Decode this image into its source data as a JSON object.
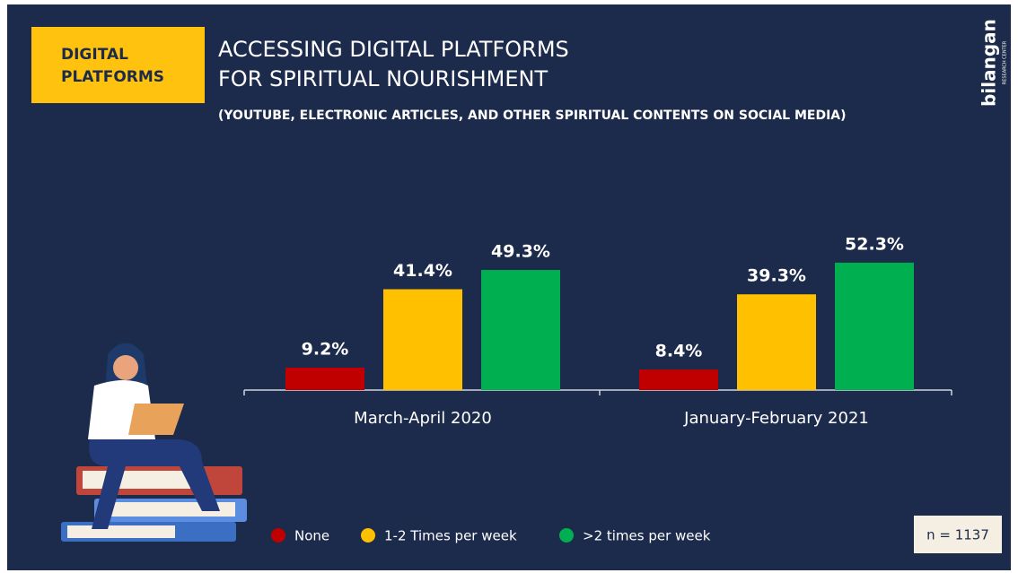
{
  "chart_data": {
    "type": "bar",
    "badge": [
      "DIGITAL",
      "PLATFORMS"
    ],
    "title": [
      "ACCESSING DIGITAL PLATFORMS",
      "FOR SPIRITUAL NOURISHMENT"
    ],
    "subtitle": "(YOUTUBE, ELECTRONIC ARTICLES, AND OTHER SPIRITUAL CONTENTS ON SOCIAL MEDIA)",
    "logo": "bilangan",
    "logo_subtitle": "RESEARCH CENTER",
    "categories": [
      "March-April 2020",
      "January-February 2021"
    ],
    "series": [
      {
        "name": "None",
        "color": "#c00000",
        "values": [
          9.2,
          8.4
        ],
        "value_labels": [
          "9.2%",
          "8.4%"
        ]
      },
      {
        "name": "1-2 Times per week",
        "color": "#ffc000",
        "values": [
          41.4,
          39.3
        ],
        "value_labels": [
          "41.4%",
          "39.3%"
        ]
      },
      {
        "name": ">2 times per week",
        "color": "#00b050",
        "values": [
          49.3,
          52.3
        ],
        "value_labels": [
          "49.3%",
          "52.3%"
        ]
      }
    ],
    "ylim": [
      0,
      60
    ],
    "annotations": [
      "n = 1137"
    ]
  }
}
